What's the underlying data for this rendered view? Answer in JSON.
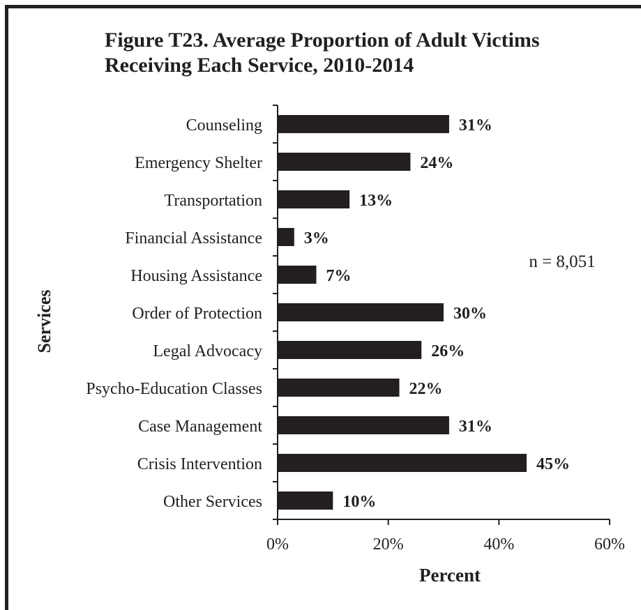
{
  "chart_data": {
    "type": "bar",
    "orientation": "horizontal",
    "title_lines": [
      "Figure T23.  Average Proportion of Adult Victims",
      "Receiving Each Service, 2010-2014"
    ],
    "xlabel": "Percent",
    "ylabel": "Services",
    "annotation": "n = 8,051",
    "categories": [
      "Counseling",
      "Emergency Shelter",
      "Transportation",
      "Financial Assistance",
      "Housing Assistance",
      "Order of Protection",
      "Legal Advocacy",
      "Psycho-Education Classes",
      "Case Management",
      "Crisis Intervention",
      "Other Services"
    ],
    "values": [
      31,
      24,
      13,
      3,
      7,
      30,
      26,
      22,
      31,
      45,
      10
    ],
    "data_labels": [
      "31%",
      "24%",
      "13%",
      "3%",
      "7%",
      "30%",
      "26%",
      "22%",
      "31%",
      "45%",
      "10%"
    ],
    "xlim": [
      0,
      60
    ],
    "xticks": [
      0,
      20,
      40,
      60
    ],
    "xtick_labels": [
      "0%",
      "20%",
      "40%",
      "60%"
    ],
    "grid": false,
    "legend": "none",
    "bar_color": "#231f20"
  }
}
